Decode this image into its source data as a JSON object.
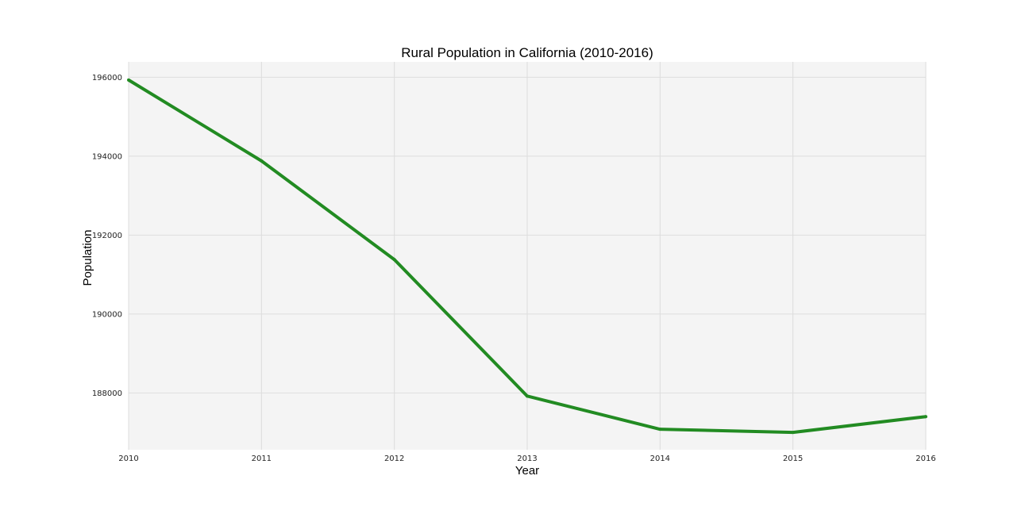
{
  "chart_data": {
    "type": "line",
    "title": "Rural Population in California (2010-2016)",
    "xlabel": "Year",
    "ylabel": "Population",
    "x": [
      "2010",
      "2011",
      "2012",
      "2013",
      "2014",
      "2015",
      "2016"
    ],
    "series": [
      {
        "values": [
          195930,
          193880,
          191380,
          187920,
          187080,
          187000,
          187400
        ],
        "color": "#228b22"
      }
    ],
    "yticks": [
      188000,
      190000,
      192000,
      194000,
      196000
    ],
    "ytick_labels": [
      "188000",
      "190000",
      "192000",
      "194000",
      "196000"
    ],
    "ylim": [
      186560,
      196390
    ],
    "grid": true,
    "grid_color": "#dddddd",
    "plot_background": "#f4f4f4",
    "legend": "none"
  }
}
